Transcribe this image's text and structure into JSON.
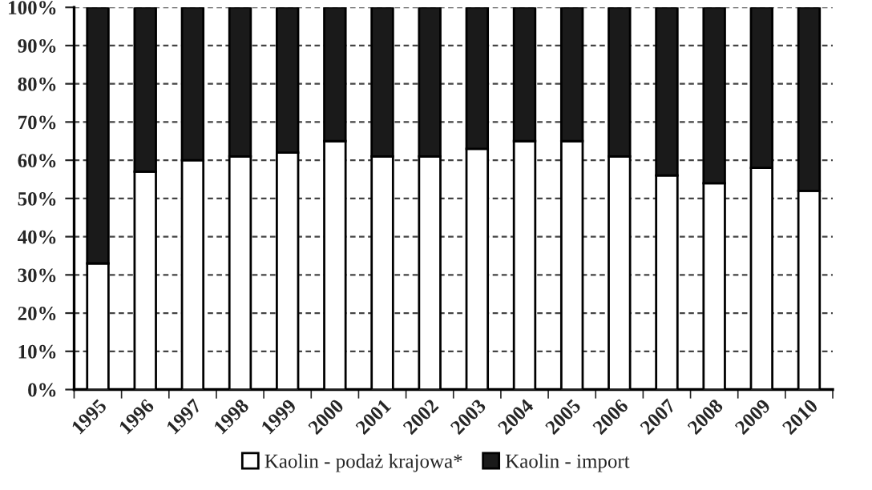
{
  "chart_data": {
    "type": "bar",
    "stacked": true,
    "categories": [
      "1995",
      "1996",
      "1997",
      "1998",
      "1999",
      "2000",
      "2001",
      "2002",
      "2003",
      "2004",
      "2005",
      "2006",
      "2007",
      "2008",
      "2009",
      "2010"
    ],
    "series": [
      {
        "name": "Kaolin - podaż krajowa*",
        "color": "#ffffff",
        "values": [
          33,
          57,
          60,
          61,
          62,
          65,
          61,
          61,
          63,
          65,
          65,
          61,
          56,
          54,
          58,
          52
        ]
      },
      {
        "name": "Kaolin - import",
        "color": "#1a1a1a",
        "values": [
          67,
          43,
          40,
          39,
          38,
          35,
          39,
          39,
          37,
          35,
          35,
          39,
          44,
          46,
          42,
          48
        ]
      }
    ],
    "ylim": [
      0,
      100
    ],
    "yticks": [
      {
        "value": 0,
        "label": "0%"
      },
      {
        "value": 10,
        "label": "10%"
      },
      {
        "value": 20,
        "label": "20%"
      },
      {
        "value": 30,
        "label": "30%"
      },
      {
        "value": 40,
        "label": "40%"
      },
      {
        "value": 50,
        "label": "50%"
      },
      {
        "value": 60,
        "label": "60%"
      },
      {
        "value": 70,
        "label": "70%"
      },
      {
        "value": 80,
        "label": "80%"
      },
      {
        "value": 90,
        "label": "90%"
      },
      {
        "value": 100,
        "label": "100%"
      }
    ],
    "grid": "y",
    "legend": "bottom"
  }
}
